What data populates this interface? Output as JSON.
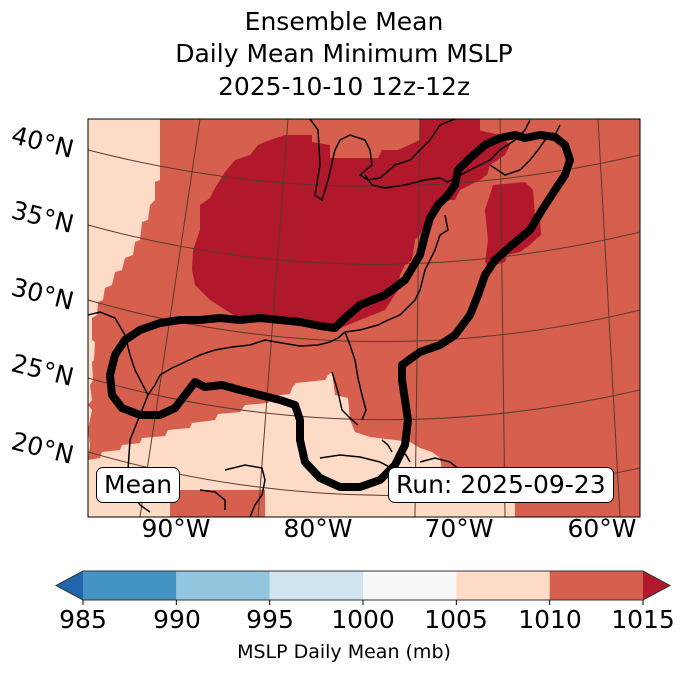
{
  "title": {
    "line1": "Ensemble Mean",
    "line2": "Daily Mean Minimum MSLP",
    "line3": "2025-10-10 12z-12z"
  },
  "map": {
    "lat_labels": [
      "40°N",
      "35°N",
      "30°N",
      "25°N",
      "20°N"
    ],
    "lon_labels": [
      "90°W",
      "80°W",
      "70°W",
      "60°W"
    ],
    "annotation_left": "Mean",
    "annotation_right": "Run: 2025-09-23",
    "contour_description": "black outline enclosing Gulf of Mexico and US East Coast corridor",
    "colors": {
      "band_1005_1010": "#fddbc7",
      "band_1010_1015": "#d6604d",
      "band_over_1015": "#b2182b",
      "contour": "#000000",
      "coastline": "#000000",
      "gridline": "#5a3a30"
    }
  },
  "colorbar": {
    "label": "MSLP Daily Mean (mb)",
    "ticks": [
      "985",
      "990",
      "995",
      "1000",
      "1005",
      "1010",
      "1015"
    ],
    "under_color": "#2166ac",
    "over_color": "#b2182b",
    "bands": [
      {
        "from": 985,
        "to": 990,
        "color": "#4393c3"
      },
      {
        "from": 990,
        "to": 995,
        "color": "#92c5de"
      },
      {
        "from": 995,
        "to": 1000,
        "color": "#d1e5f0"
      },
      {
        "from": 1000,
        "to": 1005,
        "color": "#f7f7f7"
      },
      {
        "from": 1005,
        "to": 1010,
        "color": "#fddbc7"
      },
      {
        "from": 1010,
        "to": 1015,
        "color": "#d6604d"
      }
    ]
  }
}
